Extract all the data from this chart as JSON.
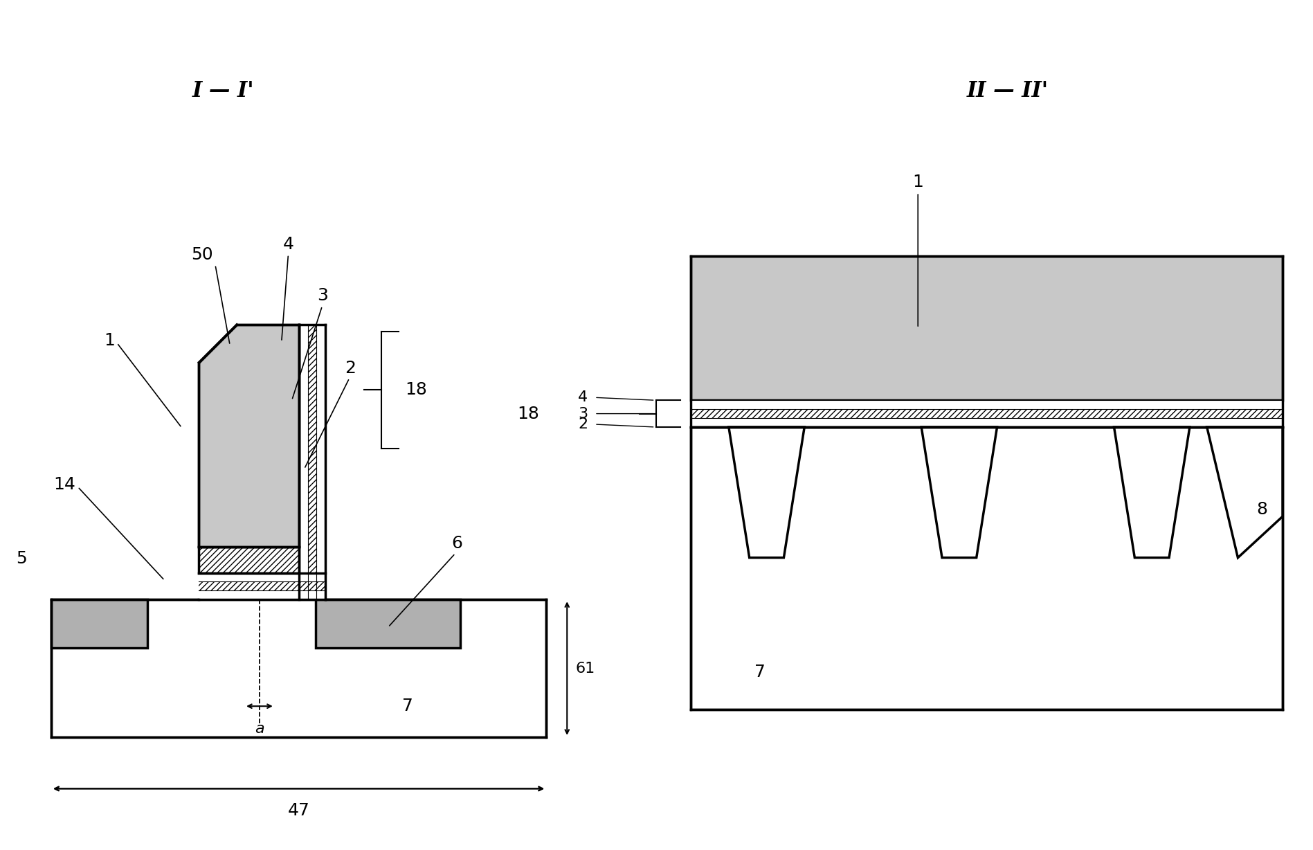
{
  "bg_color": "#ffffff",
  "label_color": "#000000",
  "fig_width": 18.97,
  "fig_height": 12.28,
  "left_title": "I — I'",
  "right_title": "II — II'",
  "dot_fill": "#c8c8c8",
  "line_color": "#000000",
  "hatch_color": "#c0c0c0",
  "gray_med": "#b0b0b0"
}
